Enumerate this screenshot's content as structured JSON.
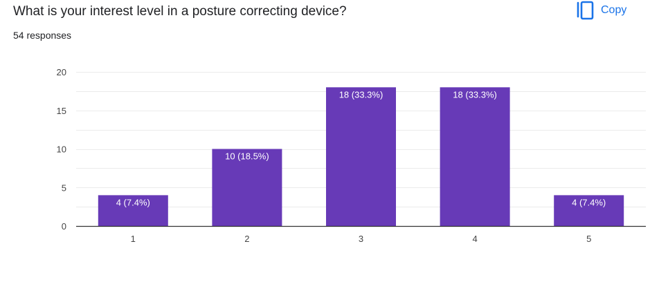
{
  "header": {
    "question": "What is your interest level in a posture correcting device?",
    "responses": "54 responses",
    "copy_label": "Copy",
    "copy_icon": "copy-icon"
  },
  "colors": {
    "bar": "#673ab7",
    "accent": "#1a73e8",
    "text": "#202124",
    "axis_text": "#444444",
    "grid": "#ebebeb",
    "baseline": "#333333",
    "label": "#ffffff"
  },
  "chart_data": {
    "type": "bar",
    "categories": [
      "1",
      "2",
      "3",
      "4",
      "5"
    ],
    "values": [
      4,
      10,
      18,
      18,
      4
    ],
    "data_labels": [
      "4 (7.4%)",
      "10 (18.5%)",
      "18 (33.3%)",
      "18 (33.3%)",
      "4 (7.4%)"
    ],
    "ylim": [
      0,
      20
    ],
    "yticks": [
      "0",
      "5",
      "10",
      "15",
      "20"
    ],
    "grid": true
  }
}
